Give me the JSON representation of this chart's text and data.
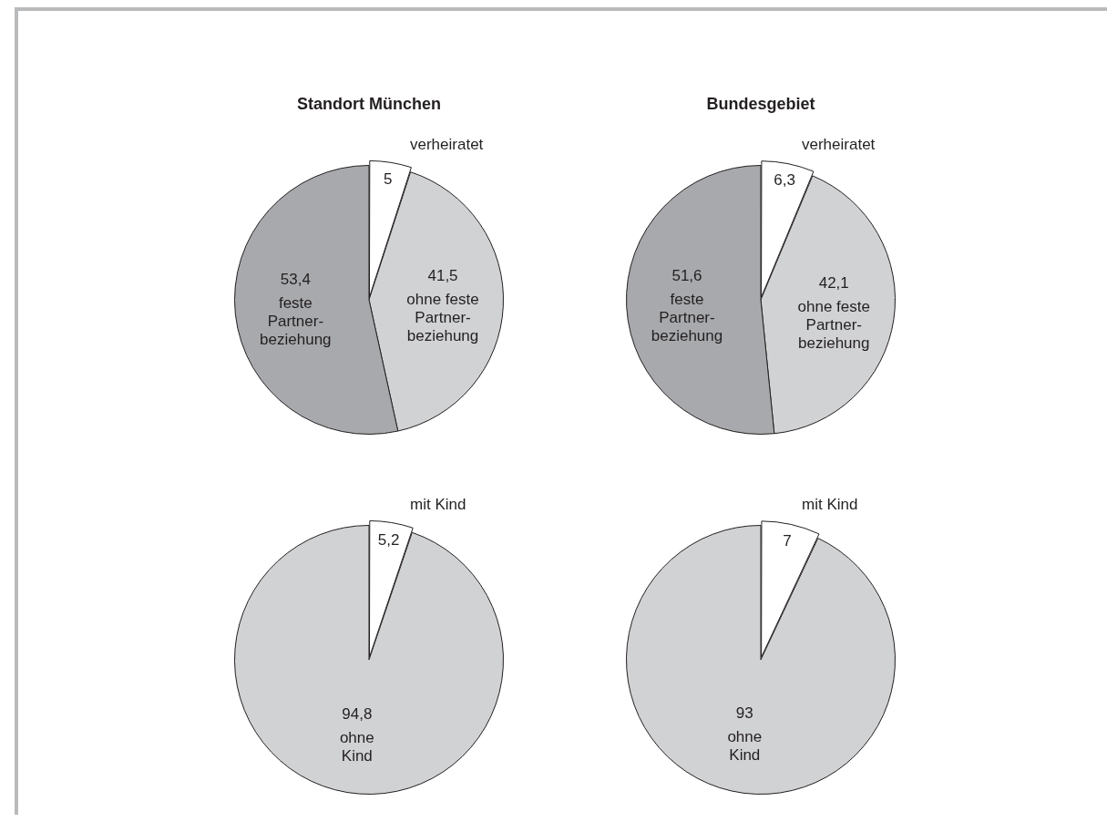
{
  "chart_data": [
    {
      "type": "pie",
      "title": "Standort München",
      "categories": [
        "verheiratet",
        "ohne feste\nPartner-\nbeziehung",
        "feste\nPartner-\nbeziehung"
      ],
      "values": [
        5,
        41.5,
        53.4
      ],
      "value_labels": [
        "5",
        "41,5",
        "53,4"
      ],
      "colors": [
        "#ffffff",
        "#d1d2d4",
        "#a7a9ac"
      ]
    },
    {
      "type": "pie",
      "title": "Bundesgebiet",
      "categories": [
        "verheiratet",
        "ohne feste\nPartner-\nbeziehung",
        "feste\nPartner-\nbeziehung"
      ],
      "values": [
        6.3,
        42.1,
        51.6
      ],
      "value_labels": [
        "6,3",
        "42,1",
        "51,6"
      ],
      "colors": [
        "#ffffff",
        "#d1d2d4",
        "#a7a9ac"
      ]
    },
    {
      "type": "pie",
      "categories": [
        "mit Kind",
        "ohne\nKind"
      ],
      "values": [
        5.2,
        94.8
      ],
      "value_labels": [
        "5,2",
        "94,8"
      ],
      "colors": [
        "#ffffff",
        "#d1d2d4"
      ]
    },
    {
      "type": "pie",
      "categories": [
        "mit Kind",
        "ohne\nKind"
      ],
      "values": [
        7,
        93
      ],
      "value_labels": [
        "7",
        "93"
      ],
      "colors": [
        "#ffffff",
        "#d1d2d4"
      ]
    }
  ]
}
